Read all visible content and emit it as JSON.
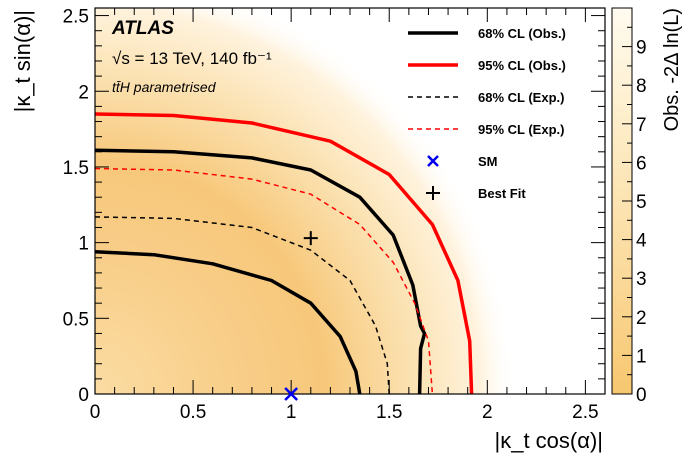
{
  "chart_data": {
    "type": "heatmap",
    "xlabel": "|κ_t cos(α)|",
    "ylabel": "|κ_t sin(α)|",
    "zlabel": "Obs. -2Δ ln(L)",
    "xlim": [
      0,
      2.6
    ],
    "ylim": [
      0,
      2.55
    ],
    "zlim": [
      0,
      10
    ],
    "x_ticks": [
      "0",
      "0.5",
      "1",
      "1.5",
      "2",
      "2.5"
    ],
    "y_ticks": [
      "0",
      "0.5",
      "1",
      "1.5",
      "2",
      "2.5"
    ],
    "z_ticks": [
      "0",
      "1",
      "2",
      "3",
      "4",
      "5",
      "6",
      "7",
      "8",
      "9"
    ],
    "annotations": {
      "experiment": "ATLAS",
      "energy": "√s = 13 TeV, 140 fb⁻¹",
      "parametrisation": "tt̄H parametrised"
    },
    "legend": {
      "position": "top-right",
      "entries": [
        {
          "label": "68% CL (Obs.)",
          "color": "#000000",
          "style": "solid"
        },
        {
          "label": "95% CL (Obs.)",
          "color": "#ff0000",
          "style": "solid"
        },
        {
          "label": "68% CL (Exp.)",
          "color": "#000000",
          "style": "dashed"
        },
        {
          "label": "95% CL (Exp.)",
          "color": "#ff0000",
          "style": "dashed"
        },
        {
          "label": "SM",
          "color": "#0000ee",
          "marker": "x"
        },
        {
          "label": "Best Fit",
          "color": "#000000",
          "marker": "+"
        }
      ]
    },
    "points": {
      "sm": [
        1.0,
        0.0
      ],
      "best_fit": [
        1.1,
        1.03
      ]
    },
    "contours": [
      {
        "label": "68% CL (Obs.)",
        "color": "#000000",
        "style": "solid",
        "segments": [
          [
            [
              0,
              0.94
            ],
            [
              0.3,
              0.92
            ],
            [
              0.6,
              0.86
            ],
            [
              0.9,
              0.75
            ],
            [
              1.1,
              0.6
            ],
            [
              1.25,
              0.38
            ],
            [
              1.33,
              0.15
            ],
            [
              1.35,
              0.0
            ]
          ],
          [
            [
              0,
              1.61
            ],
            [
              0.4,
              1.6
            ],
            [
              0.8,
              1.56
            ],
            [
              1.1,
              1.48
            ],
            [
              1.35,
              1.3
            ],
            [
              1.52,
              1.05
            ],
            [
              1.62,
              0.72
            ],
            [
              1.66,
              0.45
            ],
            [
              1.68,
              0.4
            ],
            [
              1.66,
              0.3
            ],
            [
              1.655,
              0.0
            ]
          ]
        ]
      },
      {
        "label": "95% CL (Obs.)",
        "color": "#ff0000",
        "style": "solid",
        "segments": [
          [
            [
              0,
              1.85
            ],
            [
              0.4,
              1.84
            ],
            [
              0.8,
              1.79
            ],
            [
              1.2,
              1.67
            ],
            [
              1.5,
              1.45
            ],
            [
              1.72,
              1.12
            ],
            [
              1.85,
              0.75
            ],
            [
              1.91,
              0.35
            ],
            [
              1.92,
              0.0
            ]
          ]
        ]
      },
      {
        "label": "68% CL (Exp.)",
        "color": "#000000",
        "style": "dashed",
        "segments": [
          [
            [
              0,
              1.17
            ],
            [
              0.4,
              1.16
            ],
            [
              0.8,
              1.1
            ],
            [
              1.1,
              0.95
            ],
            [
              1.3,
              0.75
            ],
            [
              1.43,
              0.45
            ],
            [
              1.49,
              0.2
            ],
            [
              1.5,
              0.0
            ]
          ]
        ]
      },
      {
        "label": "95% CL (Exp.)",
        "color": "#ff0000",
        "style": "dashed",
        "segments": [
          [
            [
              0,
              1.49
            ],
            [
              0.4,
              1.48
            ],
            [
              0.8,
              1.42
            ],
            [
              1.1,
              1.32
            ],
            [
              1.35,
              1.12
            ],
            [
              1.52,
              0.87
            ],
            [
              1.63,
              0.6
            ],
            [
              1.7,
              0.35
            ],
            [
              1.72,
              0.0
            ]
          ]
        ]
      }
    ]
  }
}
